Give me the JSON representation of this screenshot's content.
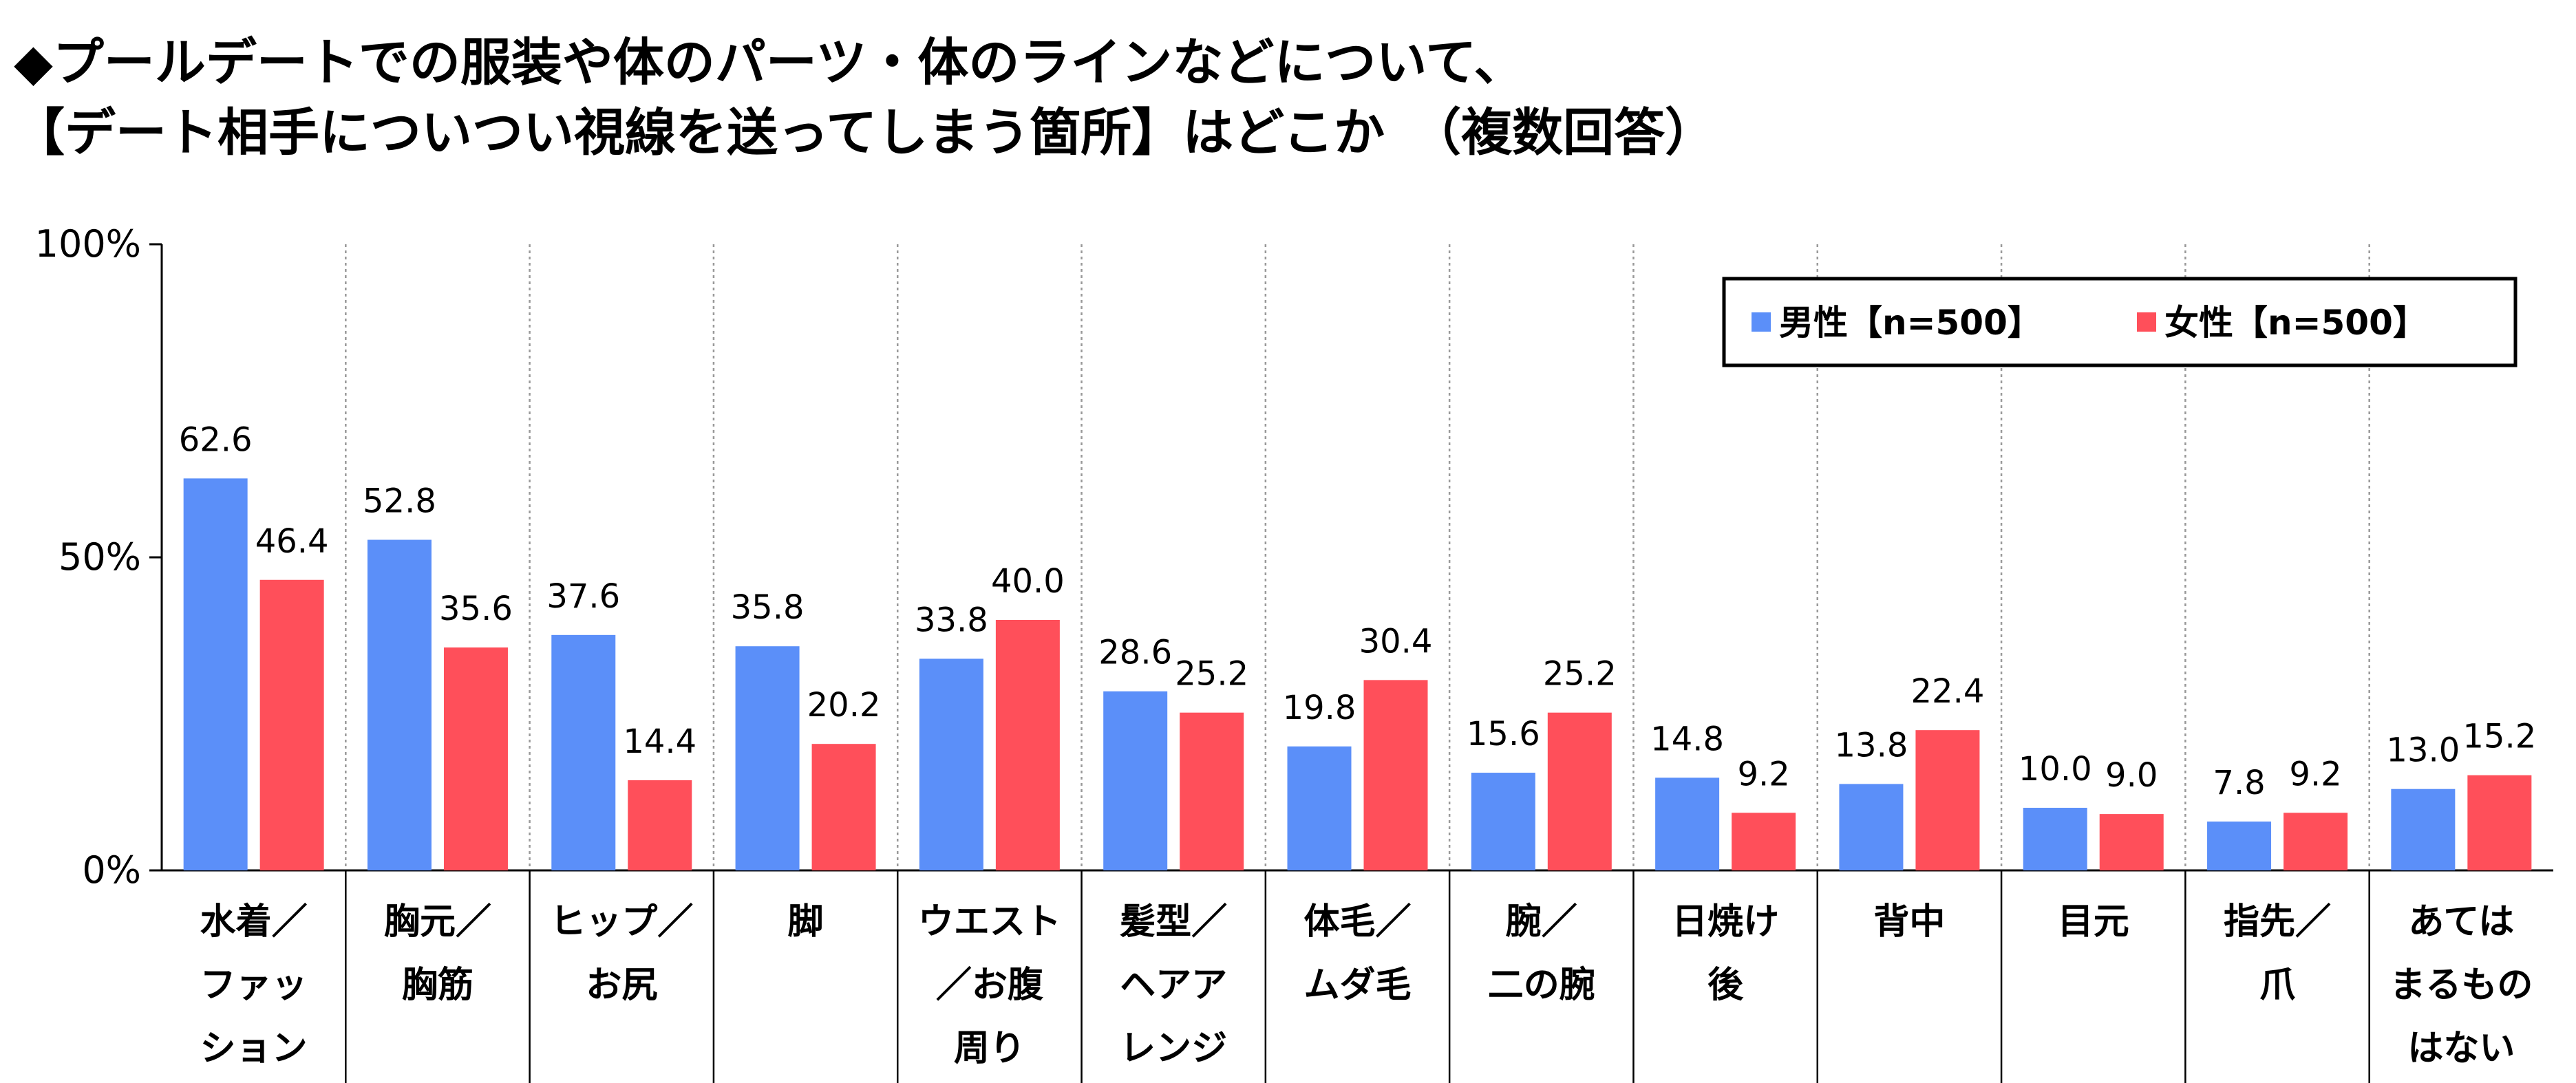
{
  "title": {
    "line1": "◆プールデートでの服装や体のパーツ・体のラインなどについて、",
    "line2": "【デート相手についつい視線を送ってしまう箇所】はどこか　（複数回答）"
  },
  "chart_data": {
    "type": "bar",
    "categories": [
      [
        "水着／",
        "ファッ",
        "ション"
      ],
      [
        "胸元／",
        "胸筋"
      ],
      [
        "ヒップ／",
        "お尻"
      ],
      [
        "脚"
      ],
      [
        "ウエスト",
        "／お腹",
        "周り"
      ],
      [
        "髪型／",
        "ヘアア",
        "レンジ"
      ],
      [
        "体毛／",
        "ムダ毛"
      ],
      [
        "腕／",
        "二の腕"
      ],
      [
        "日焼け",
        "後"
      ],
      [
        "背中"
      ],
      [
        "目元"
      ],
      [
        "指先／",
        "爪"
      ],
      [
        "あては",
        "まるもの",
        "はない"
      ]
    ],
    "series": [
      {
        "name": "男性【n=500】",
        "color": "#5B8FF9",
        "values": [
          62.6,
          52.8,
          37.6,
          35.8,
          33.8,
          28.6,
          19.8,
          15.6,
          14.8,
          13.8,
          10.0,
          7.8,
          13.0
        ]
      },
      {
        "name": "女性【n=500】",
        "color": "#FF4F5A",
        "values": [
          46.4,
          35.6,
          14.4,
          20.2,
          40.0,
          25.2,
          30.4,
          25.2,
          9.2,
          22.4,
          9.0,
          9.2,
          15.2
        ]
      }
    ],
    "yticks": [
      "0%",
      "50%",
      "100%"
    ],
    "ylim": [
      0,
      100
    ],
    "grid": "vertical-dotted",
    "legend_position": "top-right"
  }
}
